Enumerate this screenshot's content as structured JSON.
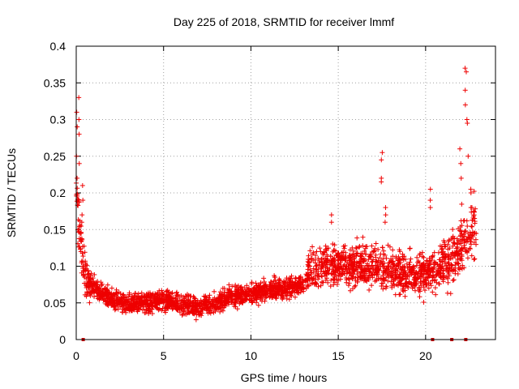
{
  "chart_data": {
    "type": "scatter",
    "title": "Day 225 of 2018, SRMTID for receiver lmmf",
    "xlabel": "GPS time / hours",
    "ylabel": "SRMTID / TECUs",
    "xlim": [
      0,
      24
    ],
    "ylim": [
      0,
      0.4
    ],
    "x_ticks": [
      0,
      5,
      10,
      15,
      20
    ],
    "x_tick_labels": [
      "0",
      "5",
      "10",
      "15",
      "20"
    ],
    "y_ticks": [
      0,
      0.05,
      0.1,
      0.15,
      0.2,
      0.25,
      0.3,
      0.35,
      0.4
    ],
    "y_tick_labels": [
      "0",
      "0.05",
      "0.1",
      "0.15",
      "0.2",
      "0.25",
      "0.3",
      "0.35",
      "0.4"
    ],
    "grid": true,
    "marker": "+",
    "color": "#ee0000",
    "series": [
      {
        "name": "SRMTID",
        "trend": {
          "x": [
            0,
            0.15,
            0.35,
            0.6,
            1.0,
            2.0,
            3.0,
            4.0,
            5.0,
            6.0,
            7.0,
            8.0,
            9.0,
            10.0,
            11.0,
            12.0,
            13.0,
            13.3,
            14.0,
            15.0,
            16.0,
            17.0,
            18.0,
            19.0,
            20.0,
            20.5,
            21.0,
            21.5,
            22.0,
            22.5,
            22.9
          ],
          "y": [
            0.2,
            0.15,
            0.11,
            0.08,
            0.07,
            0.055,
            0.048,
            0.05,
            0.055,
            0.048,
            0.045,
            0.05,
            0.058,
            0.062,
            0.068,
            0.07,
            0.075,
            0.09,
            0.1,
            0.1,
            0.1,
            0.1,
            0.095,
            0.09,
            0.09,
            0.095,
            0.1,
            0.11,
            0.13,
            0.15,
            0.15
          ]
        },
        "spread": {
          "x": [
            0,
            1,
            13,
            13.3,
            20,
            23
          ],
          "y": [
            0.06,
            0.02,
            0.02,
            0.04,
            0.04,
            0.06
          ]
        },
        "spikes": [
          {
            "x": 0.05,
            "y": [
              0.31,
              0.29,
              0.25,
              0.22
            ]
          },
          {
            "x": 0.15,
            "y": [
              0.33,
              0.3,
              0.28,
              0.24
            ]
          },
          {
            "x": 0.35,
            "y": [
              0.21,
              0.19,
              0.17,
              0.16
            ]
          },
          {
            "x": 17.5,
            "y": [
              0.255,
              0.245,
              0.22,
              0.215
            ]
          },
          {
            "x": 17.7,
            "y": [
              0.18,
              0.17,
              0.16
            ]
          },
          {
            "x": 14.6,
            "y": [
              0.17,
              0.16
            ]
          },
          {
            "x": 20.3,
            "y": [
              0.205,
              0.19,
              0.18
            ]
          },
          {
            "x": 22.0,
            "y": [
              0.26,
              0.24,
              0.22
            ]
          },
          {
            "x": 22.3,
            "y": [
              0.37,
              0.365,
              0.34,
              0.32
            ]
          },
          {
            "x": 22.4,
            "y": [
              0.3,
              0.295,
              0.25
            ]
          },
          {
            "x": 22.6,
            "y": [
              0.205,
              0.2,
              0.18
            ]
          }
        ],
        "zero_points": [
          0.4,
          20.4,
          21.5,
          22.3
        ]
      }
    ]
  }
}
